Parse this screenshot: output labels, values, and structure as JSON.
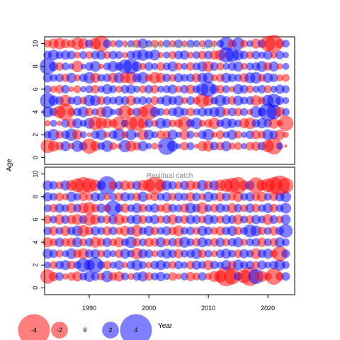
{
  "chart_data": {
    "type": "scatter",
    "ylabel": "Age",
    "xlabel": "Year",
    "colors": {
      "positive": "#0000ff",
      "negative": "#ff0000",
      "opacity": 0.5
    },
    "x_ticks": [
      1990,
      2000,
      2010,
      2020
    ],
    "xlim": [
      1982.5,
      2024.5
    ],
    "y_ticks": [
      0,
      2,
      4,
      6,
      8,
      10
    ],
    "years": [
      1983,
      1984,
      1985,
      1986,
      1987,
      1988,
      1989,
      1990,
      1991,
      1992,
      1993,
      1994,
      1995,
      1996,
      1997,
      1998,
      1999,
      2000,
      2001,
      2002,
      2003,
      2004,
      2005,
      2006,
      2007,
      2008,
      2009,
      2010,
      2011,
      2012,
      2013,
      2014,
      2015,
      2016,
      2017,
      2018,
      2019,
      2020,
      2021,
      2022,
      2023
    ],
    "panels": [
      {
        "title": "Joint sample residuals log(N)",
        "ylim": [
          -0.6,
          10.6
        ],
        "ages": [
          1,
          2,
          3,
          4,
          5,
          6,
          7,
          8,
          9,
          10
        ],
        "residuals": [
          [
            -1.6,
            -1.2,
            -0.9,
            1.1,
            -0.6,
            1.3,
            0.9,
            -1.8,
            -1.1,
            0.8,
            1.3,
            -0.8,
            -0.5,
            1.4,
            -1.2,
            -0.9,
            1.1,
            0.6,
            -0.7,
            -0.3,
            2.1,
            1.2,
            0.5,
            -0.9,
            0.8,
            -0.4,
            -1.1,
            -1.2,
            0.9,
            -0.9,
            1.1,
            -0.7,
            -0.8,
            0.6,
            -0.9,
            -1.0,
            0.9,
            -1.4,
            -2.0,
            0.7,
            -0.2
          ],
          [
            0.8,
            1.3,
            -0.8,
            0.9,
            1.4,
            -1.1,
            0.7,
            -0.4,
            0.9,
            1.2,
            -0.6,
            0.9,
            1.4,
            -0.7,
            1.2,
            0.5,
            -1.2,
            1.1,
            0.7,
            -0.9,
            -0.8,
            1.1,
            0.6,
            -1.1,
            0.8,
            -0.5,
            0.9,
            1.3,
            -0.6,
            -0.9,
            0.7,
            1.1,
            -0.8,
            0.6,
            0.9,
            -1.0,
            -0.8,
            1.2,
            0.9,
            -1.1,
            -0.6
          ],
          [
            -0.6,
            0.7,
            -0.5,
            0.9,
            -1.0,
            1.1,
            0.7,
            1.2,
            -1.6,
            -1.3,
            -1.1,
            -0.9,
            -1.6,
            0.8,
            -1.5,
            -1.8,
            -1.2,
            0.9,
            -0.7,
            1.2,
            1.0,
            -0.8,
            -0.9,
            -1.6,
            0.9,
            1.3,
            -0.7,
            -0.9,
            -1.3,
            0.8,
            1.2,
            1.0,
            0.8,
            -1.1,
            -1.3,
            0.9,
            1.1,
            0.9,
            -1.2,
            -0.6,
            -1.8
          ],
          [
            1.2,
            0.9,
            -1.4,
            -2.0,
            -0.8,
            0.9,
            1.2,
            -0.9,
            0.7,
            -1.1,
            1.3,
            0.6,
            0.8,
            -1.6,
            -0.8,
            0.9,
            -1.2,
            -1.9,
            1.1,
            0.8,
            -0.7,
            0.9,
            1.2,
            0.8,
            -0.9,
            0.7,
            1.0,
            0.9,
            1.1,
            1.2,
            -0.8,
            0.9,
            -0.9,
            0.8,
            -0.6,
            1.3,
            0.9,
            2.1,
            1.7,
            -1.1,
            0.8
          ],
          [
            1.8,
            1.1,
            0.9,
            -1.3,
            0.8,
            1.0,
            -0.8,
            1.3,
            1.2,
            -0.9,
            0.9,
            0.8,
            1.0,
            0.9,
            -1.1,
            0.8,
            0.9,
            0.7,
            -0.9,
            0.8,
            1.2,
            0.9,
            1.1,
            -0.7,
            0.9,
            -0.8,
            -1.6,
            -1.2,
            0.8,
            1.3,
            0.9,
            -0.9,
            1.1,
            0.8,
            0.9,
            -1.2,
            -0.8,
            1.3,
            1.6,
            0.9,
            0.7
          ],
          [
            0.8,
            -0.7,
            -0.9,
            0.9,
            -0.5,
            -0.8,
            0.6,
            0.8,
            -0.9,
            0.7,
            1.1,
            0.8,
            -0.7,
            0.9,
            1.0,
            0.7,
            -0.8,
            0.9,
            -0.9,
            0.7,
            0.8,
            1.0,
            -0.7,
            0.9,
            -1.0,
            0.8,
            1.4,
            1.8,
            1.0,
            -0.9,
            0.8,
            -0.6,
            1.1,
            0.9,
            -0.8,
            0.7,
            0.9,
            -0.8,
            0.7,
            1.0,
            0.8
          ],
          [
            1.0,
            0.8,
            0.9,
            -0.9,
            1.1,
            -0.7,
            0.9,
            1.3,
            -1.1,
            0.8,
            0.9,
            -1.1,
            1.2,
            -1.2,
            -1.4,
            1.0,
            1.3,
            -0.8,
            -1.3,
            -1.1,
            0.9,
            -0.8,
            1.0,
            0.8,
            0.9,
            -1.0,
            1.1,
            1.2,
            -0.7,
            -0.9,
            1.1,
            0.9,
            0.8,
            -1.0,
            1.2,
            1.3,
            -0.8,
            1.1,
            0.9,
            -0.7,
            -0.8
          ],
          [
            1.9,
            1.0,
            -0.9,
            0.8,
            0.6,
            -1.3,
            0.5,
            0.9,
            1.2,
            -0.5,
            0.8,
            1.2,
            0.9,
            1.6,
            1.8,
            1.1,
            -0.7,
            0.9,
            0.7,
            -0.9,
            0.8,
            1.1,
            -0.8,
            0.7,
            -0.9,
            0.8,
            1.1,
            -1.2,
            0.9,
            -0.8,
            0.7,
            0.9,
            1.1,
            -0.7,
            0.8,
            0.9,
            1.2,
            -0.9,
            1.1,
            -0.6,
            0.7
          ],
          [
            0.9,
            1.2,
            0.8,
            1.0,
            0.9,
            -0.7,
            0.8,
            -0.8,
            0.9,
            1.0,
            -0.8,
            0.9,
            0.8,
            -0.6,
            0.9,
            1.1,
            1.3,
            0.9,
            1.2,
            -0.6,
            0.7,
            -0.8,
            0.9,
            1.0,
            -0.7,
            0.8,
            -0.9,
            0.9,
            -1.0,
            -1.2,
            1.8,
            1.6,
            1.2,
            0.9,
            -0.8,
            0.9,
            0.7,
            1.0,
            -0.7,
            0.9,
            0.6
          ],
          [
            -0.8,
            -1.1,
            -1.3,
            -1.0,
            -0.9,
            -1.4,
            -1.2,
            0.9,
            -1.3,
            -1.9,
            0.9,
            -0.7,
            0.8,
            -0.6,
            0.7,
            -0.9,
            1.1,
            0.7,
            -0.8,
            -0.6,
            0.8,
            -0.7,
            0.9,
            -0.6,
            0.8,
            0.7,
            -0.7,
            0.9,
            -0.6,
            0.8,
            1.6,
            -0.9,
            1.4,
            -0.8,
            0.7,
            -1.1,
            0.9,
            -1.8,
            -2.1,
            -1.0,
            0.8
          ]
        ]
      },
      {
        "title": "Residual catch",
        "ylim": [
          -0.6,
          10.6
        ],
        "ages": [
          1,
          2,
          3,
          4,
          5,
          6,
          7,
          8,
          9
        ],
        "residuals": [
          [
            -1.7,
            -1.0,
            0.9,
            -0.6,
            -0.9,
            -1.1,
            0.8,
            1.2,
            0.9,
            -0.8,
            1.3,
            -0.9,
            -1.1,
            0.8,
            -0.7,
            0.9,
            1.1,
            -0.9,
            0.8,
            1.0,
            0.7,
            -0.9,
            -0.6,
            0.8,
            -1.0,
            -0.8,
            0.9,
            -0.7,
            -1.2,
            -1.4,
            -2.4,
            -1.9,
            0.9,
            -1.6,
            -2.3,
            1.8,
            -1.2,
            -0.8,
            -2.0,
            -0.9,
            0.9
          ],
          [
            0.7,
            -0.8,
            0.9,
            1.1,
            -0.9,
            0.8,
            1.6,
            1.2,
            1.9,
            0.8,
            -0.9,
            0.7,
            1.0,
            -0.6,
            0.9,
            1.2,
            0.8,
            -0.7,
            0.9,
            1.1,
            0.8,
            -0.8,
            0.9,
            0.7,
            -0.9,
            1.0,
            0.8,
            -1.1,
            0.9,
            0.7,
            1.1,
            -0.9,
            1.2,
            0.8,
            0.9,
            -0.8,
            1.0,
            0.7,
            0.9,
            1.2,
            0.8
          ],
          [
            1.1,
            0.9,
            -0.8,
            0.7,
            1.2,
            -0.9,
            -1.2,
            0.9,
            1.0,
            -0.8,
            0.9,
            0.7,
            -0.9,
            1.1,
            0.8,
            -1.3,
            1.0,
            0.9,
            -0.7,
            0.8,
            1.1,
            0.9,
            -1.0,
            0.8,
            0.9,
            1.2,
            -0.9,
            0.8,
            -0.7,
            0.9,
            1.1,
            0.8,
            -0.9,
            1.0,
            0.8,
            -1.2,
            0.9,
            1.1,
            -0.8,
            -1.8,
            0.9
          ],
          [
            -1.1,
            -0.8,
            1.0,
            -0.9,
            -1.0,
            1.1,
            -0.8,
            0.9,
            -1.2,
            -0.9,
            1.0,
            -0.8,
            -1.1,
            0.8,
            1.3,
            -0.9,
            0.8,
            -1.0,
            -0.9,
            1.1,
            -0.8,
            0.9,
            -1.0,
            1.2,
            0.8,
            -0.9,
            1.1,
            0.8,
            -0.9,
            1.0,
            -0.8,
            0.9,
            1.1,
            -0.7,
            0.8,
            0.9,
            -1.0,
            0.8,
            -0.9,
            1.1,
            0.8
          ],
          [
            0.9,
            -1.0,
            0.8,
            -1.1,
            0.9,
            1.2,
            -1.3,
            -0.9,
            1.0,
            0.8,
            -1.0,
            0.9,
            -0.8,
            -1.1,
            0.9,
            -1.3,
            0.8,
            1.1,
            -0.9,
            0.8,
            1.0,
            -0.9,
            -1.2,
            0.8,
            0.9,
            -0.8,
            1.1,
            0.9,
            -0.8,
            -1.0,
            0.9,
            1.1,
            -0.9,
            0.8,
            1.5,
            1.2,
            -0.9,
            0.8,
            -1.0,
            0.9,
            1.6
          ],
          [
            -0.9,
            0.8,
            -1.1,
            0.9,
            -1.0,
            -1.2,
            0.9,
            -1.4,
            -1.1,
            0.8,
            -0.9,
            1.0,
            -1.2,
            -0.8,
            0.9,
            1.1,
            -0.9,
            0.8,
            1.0,
            -0.8,
            0.9,
            -1.1,
            0.8,
            -0.9,
            1.0,
            0.9,
            -0.8,
            1.1,
            0.9,
            -0.8,
            1.0,
            0.9,
            -1.1,
            0.8,
            -0.9,
            1.0,
            0.8,
            -1.2,
            0.9,
            -0.8,
            1.1
          ],
          [
            0.8,
            -0.9,
            1.0,
            0.8,
            -1.1,
            0.9,
            -1.2,
            -1.4,
            -0.9,
            1.0,
            -0.8,
            1.8,
            0.9,
            -1.0,
            0.8,
            1.1,
            -0.9,
            0.8,
            1.0,
            -0.8,
            -1.1,
            0.9,
            0.8,
            -1.0,
            1.2,
            0.9,
            -1.3,
            0.8,
            -0.9,
            1.0,
            0.8,
            -1.1,
            0.9,
            -0.8,
            1.0,
            -0.9,
            0.8,
            1.1,
            -0.9,
            0.8,
            1.2
          ],
          [
            1.0,
            0.8,
            -0.9,
            -0.7,
            1.1,
            0.8,
            -0.9,
            -0.8,
            1.0,
            0.9,
            -0.7,
            0.8,
            -0.9,
            1.0,
            0.8,
            -0.9,
            1.1,
            -0.7,
            -0.9,
            0.8,
            1.0,
            -0.8,
            0.9,
            0.8,
            -1.0,
            0.9,
            -0.7,
            1.1,
            0.8,
            -1.0,
            0.9,
            -0.8,
            -1.1,
            0.8,
            1.0,
            -0.9,
            -1.1,
            0.8,
            -0.9,
            1.0,
            1.2
          ],
          [
            1.1,
            0.9,
            -0.8,
            1.1,
            -1.2,
            -1.6,
            -2.0,
            -1.7,
            -1.3,
            1.0,
            2.2,
            -0.9,
            0.9,
            -1.1,
            -0.9,
            1.0,
            -1.2,
            -1.4,
            -2.1,
            -1.3,
            1.1,
            0.9,
            -0.8,
            1.0,
            -1.1,
            -0.9,
            1.2,
            -1.0,
            1.1,
            -1.3,
            -1.5,
            -1.8,
            -2.0,
            -1.1,
            1.0,
            -1.9,
            -1.2,
            -1.6,
            -2.0,
            -2.4,
            -1.8
          ]
        ]
      }
    ],
    "legend": {
      "values": [
        -4,
        -2,
        0,
        2,
        4
      ],
      "labels": [
        "-4",
        "-2",
        "0",
        "2",
        "4"
      ],
      "title": "Year"
    }
  }
}
